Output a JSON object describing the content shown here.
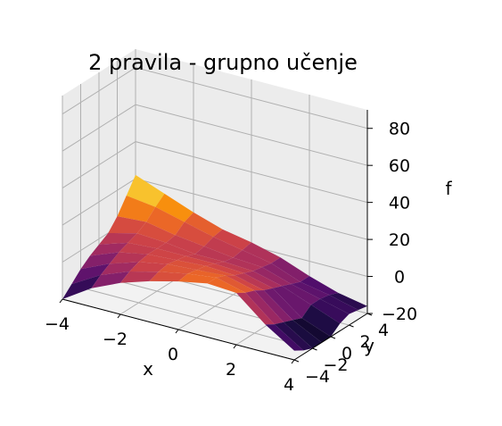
{
  "chart_data": {
    "type": "surface",
    "title": "2 pravila - grupno učenje",
    "xlabel": "x",
    "ylabel": "y",
    "zlabel": "f",
    "x": [
      -4,
      -3,
      -2,
      -1,
      0,
      1,
      2,
      3,
      4
    ],
    "y": [
      -4,
      -3,
      -2,
      -1,
      0,
      1,
      2,
      3,
      4
    ],
    "z_rows_by_y": [
      [
        -20,
        -10,
        -3,
        2,
        6,
        9,
        8,
        -5,
        -15
      ],
      [
        -15,
        -6,
        0,
        4,
        7,
        9,
        5,
        -8,
        -18
      ],
      [
        -10,
        -3,
        2,
        5,
        6,
        7,
        3,
        -10,
        -20
      ],
      [
        -6,
        0,
        3,
        4,
        5,
        4,
        0,
        -12,
        -20
      ],
      [
        -3,
        2,
        3,
        3,
        3,
        2,
        -2,
        -14,
        -20
      ],
      [
        0,
        4,
        3,
        1,
        1,
        0,
        -4,
        -10,
        -16
      ],
      [
        6,
        7,
        4,
        2,
        0,
        -1,
        -6,
        -10,
        -14
      ],
      [
        14,
        12,
        8,
        4,
        1,
        -2,
        -8,
        -11,
        -15
      ],
      [
        22,
        16,
        10,
        5,
        2,
        -2,
        -8,
        -13,
        -16
      ]
    ],
    "zlim": [
      -20,
      90
    ],
    "xticks": [
      -4,
      -2,
      0,
      2,
      4
    ],
    "yticks": [
      -4,
      -2,
      0,
      2,
      4
    ],
    "zticks": [
      -20,
      0,
      20,
      40,
      60,
      80
    ],
    "colormap": [
      "#000004",
      "#1b0c41",
      "#4a0c6b",
      "#781c6d",
      "#a52c60",
      "#cf4446",
      "#ed6925",
      "#fb9b06",
      "#f7d13d",
      "#fcffa4"
    ],
    "grid": true
  }
}
